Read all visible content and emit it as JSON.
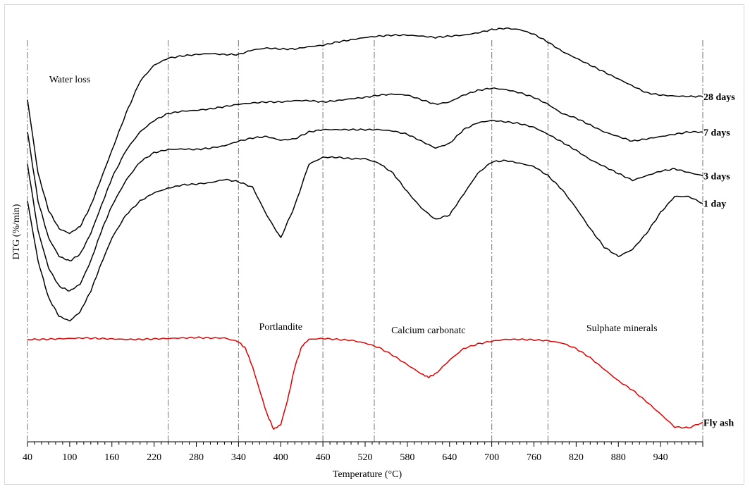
{
  "chart_data": {
    "type": "line",
    "xlabel": "Temperature (°C)",
    "ylabel": "DTG (%/min)",
    "xlim": [
      40,
      1000
    ],
    "x_ticks": [
      40,
      100,
      160,
      220,
      280,
      340,
      400,
      460,
      520,
      580,
      640,
      700,
      760,
      820,
      880,
      940
    ],
    "region_lines": [
      40,
      240,
      340,
      460,
      533,
      700,
      780,
      1000
    ],
    "annotations": [
      {
        "text": "Water loss",
        "x": 100
      },
      {
        "text": "Portlandite",
        "x": 400
      },
      {
        "text": "Calcium carbonatc",
        "x": 610
      },
      {
        "text": "Sulphate minerals",
        "x": 885
      }
    ],
    "series": [
      {
        "name": "28 days",
        "color": "#000000",
        "x": [
          40,
          55,
          70,
          85,
          100,
          115,
          130,
          145,
          160,
          180,
          200,
          220,
          240,
          260,
          280,
          300,
          320,
          340,
          360,
          380,
          400,
          420,
          440,
          460,
          480,
          500,
          520,
          540,
          560,
          580,
          600,
          620,
          640,
          660,
          680,
          700,
          720,
          740,
          760,
          780,
          800,
          820,
          840,
          860,
          880,
          900,
          920,
          940,
          960,
          980,
          1000
        ],
        "y": [
          2.2,
          0.6,
          -0.2,
          -0.6,
          -0.7,
          -0.55,
          -0.1,
          0.5,
          1.1,
          1.9,
          2.6,
          2.95,
          3.1,
          3.15,
          3.18,
          3.2,
          3.18,
          3.18,
          3.28,
          3.32,
          3.3,
          3.3,
          3.35,
          3.38,
          3.45,
          3.5,
          3.55,
          3.58,
          3.6,
          3.6,
          3.58,
          3.55,
          3.58,
          3.6,
          3.65,
          3.72,
          3.75,
          3.72,
          3.62,
          3.45,
          3.25,
          3.1,
          2.95,
          2.8,
          2.65,
          2.5,
          2.35,
          2.3,
          2.28,
          2.27,
          2.27
        ]
      },
      {
        "name": "7 days",
        "color": "#000000",
        "x": [
          40,
          55,
          70,
          85,
          100,
          115,
          130,
          145,
          160,
          180,
          200,
          220,
          240,
          260,
          280,
          300,
          320,
          340,
          360,
          380,
          400,
          420,
          440,
          460,
          480,
          500,
          520,
          540,
          560,
          580,
          600,
          620,
          640,
          660,
          680,
          700,
          720,
          740,
          760,
          780,
          800,
          820,
          840,
          860,
          880,
          900,
          920,
          940,
          960,
          980,
          1000
        ],
        "y": [
          1.5,
          0.0,
          -0.8,
          -1.2,
          -1.3,
          -1.15,
          -0.7,
          -0.1,
          0.5,
          1.1,
          1.5,
          1.75,
          1.9,
          1.95,
          1.97,
          2.0,
          2.05,
          2.1,
          2.13,
          2.15,
          2.15,
          2.18,
          2.18,
          2.15,
          2.18,
          2.22,
          2.25,
          2.3,
          2.32,
          2.3,
          2.2,
          2.1,
          2.15,
          2.3,
          2.4,
          2.45,
          2.42,
          2.35,
          2.25,
          2.1,
          1.9,
          1.8,
          1.65,
          1.5,
          1.4,
          1.3,
          1.35,
          1.4,
          1.45,
          1.5,
          1.5
        ]
      },
      {
        "name": "3 days",
        "color": "#000000",
        "x": [
          40,
          55,
          70,
          85,
          100,
          115,
          130,
          145,
          160,
          180,
          200,
          220,
          240,
          260,
          280,
          300,
          320,
          340,
          360,
          380,
          400,
          420,
          440,
          460,
          480,
          500,
          520,
          540,
          560,
          580,
          600,
          620,
          640,
          660,
          680,
          700,
          720,
          740,
          760,
          780,
          800,
          820,
          840,
          860,
          880,
          900,
          920,
          940,
          960,
          980,
          1000
        ],
        "y": [
          0.8,
          -0.65,
          -1.45,
          -1.85,
          -1.95,
          -1.8,
          -1.3,
          -0.65,
          -0.1,
          0.45,
          0.85,
          1.05,
          1.12,
          1.13,
          1.12,
          1.15,
          1.2,
          1.3,
          1.37,
          1.4,
          1.32,
          1.35,
          1.5,
          1.55,
          1.55,
          1.55,
          1.55,
          1.55,
          1.52,
          1.45,
          1.3,
          1.15,
          1.25,
          1.55,
          1.7,
          1.75,
          1.72,
          1.68,
          1.6,
          1.45,
          1.28,
          1.1,
          0.9,
          0.75,
          0.6,
          0.45,
          0.55,
          0.65,
          0.7,
          0.62,
          0.55
        ]
      },
      {
        "name": "1 day",
        "color": "#000000",
        "x": [
          40,
          55,
          70,
          85,
          100,
          115,
          130,
          145,
          160,
          180,
          200,
          220,
          240,
          260,
          280,
          300,
          320,
          340,
          360,
          380,
          400,
          420,
          440,
          460,
          480,
          500,
          520,
          540,
          560,
          580,
          600,
          620,
          640,
          660,
          680,
          700,
          720,
          740,
          760,
          780,
          800,
          820,
          840,
          860,
          880,
          900,
          920,
          940,
          960,
          980,
          1000
        ],
        "y": [
          0.0,
          -1.3,
          -2.1,
          -2.5,
          -2.6,
          -2.4,
          -1.95,
          -1.35,
          -0.8,
          -0.3,
          0.0,
          0.18,
          0.28,
          0.35,
          0.37,
          0.4,
          0.47,
          0.42,
          0.3,
          -0.3,
          -0.8,
          -0.1,
          0.8,
          0.95,
          0.95,
          0.92,
          0.92,
          0.82,
          0.6,
          0.2,
          -0.15,
          -0.4,
          -0.3,
          0.15,
          0.6,
          0.85,
          0.88,
          0.82,
          0.75,
          0.55,
          0.25,
          -0.15,
          -0.6,
          -1.0,
          -1.2,
          -1.05,
          -0.7,
          -0.25,
          0.1,
          0.1,
          -0.05
        ]
      },
      {
        "name": "Fly ash",
        "color": "#e00000",
        "x": [
          40,
          60,
          80,
          100,
          120,
          140,
          160,
          180,
          200,
          220,
          240,
          260,
          280,
          300,
          320,
          340,
          350,
          360,
          370,
          380,
          390,
          400,
          410,
          420,
          430,
          440,
          460,
          480,
          500,
          520,
          540,
          560,
          580,
          600,
          610,
          620,
          640,
          660,
          680,
          700,
          720,
          740,
          760,
          780,
          800,
          820,
          840,
          860,
          880,
          900,
          920,
          940,
          960,
          980,
          1000
        ],
        "y": [
          -3.0,
          -3.0,
          -2.99,
          -2.98,
          -2.97,
          -2.98,
          -2.99,
          -3.0,
          -3.0,
          -2.99,
          -2.98,
          -2.97,
          -2.96,
          -2.97,
          -2.97,
          -3.05,
          -3.2,
          -3.6,
          -4.1,
          -4.6,
          -4.95,
          -4.85,
          -4.3,
          -3.6,
          -3.15,
          -3.0,
          -2.98,
          -3.0,
          -3.02,
          -3.08,
          -3.18,
          -3.35,
          -3.55,
          -3.75,
          -3.82,
          -3.75,
          -3.45,
          -3.2,
          -3.1,
          -3.04,
          -3.0,
          -3.0,
          -3.01,
          -3.03,
          -3.08,
          -3.2,
          -3.4,
          -3.65,
          -3.9,
          -4.1,
          -4.35,
          -4.62,
          -4.9,
          -4.92,
          -4.8
        ]
      }
    ]
  }
}
